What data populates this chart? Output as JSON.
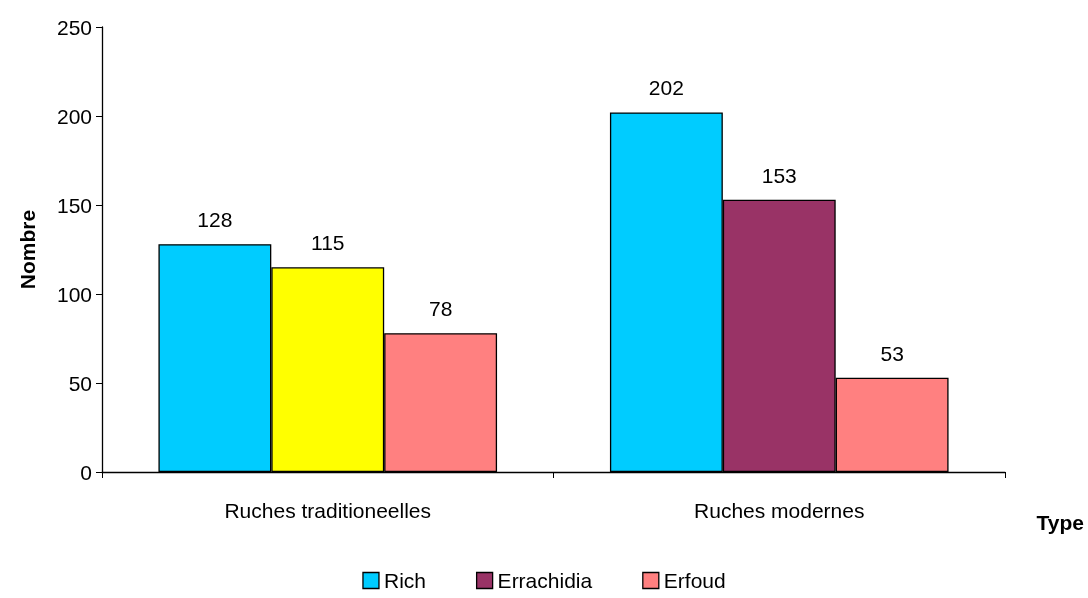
{
  "chart_data": {
    "type": "bar",
    "xlabel": "Type",
    "ylabel": "Nombre",
    "categories": [
      "Ruches traditioneelles",
      "Ruches modernes"
    ],
    "series": [
      {
        "name": "Rich",
        "color": "#00ccff",
        "values": [
          128,
          202
        ]
      },
      {
        "name": "Errachidia",
        "color": "#993366",
        "colors": [
          "#ffff00",
          "#993366"
        ],
        "values": [
          115,
          153
        ]
      },
      {
        "name": "Erfoud",
        "color": "#ff8080",
        "values": [
          78,
          53
        ]
      }
    ],
    "ylim": [
      0,
      250
    ],
    "yticks": [
      0,
      50,
      100,
      150,
      200,
      250
    ],
    "data_labels": true,
    "legend": "bottom",
    "grid": false
  }
}
